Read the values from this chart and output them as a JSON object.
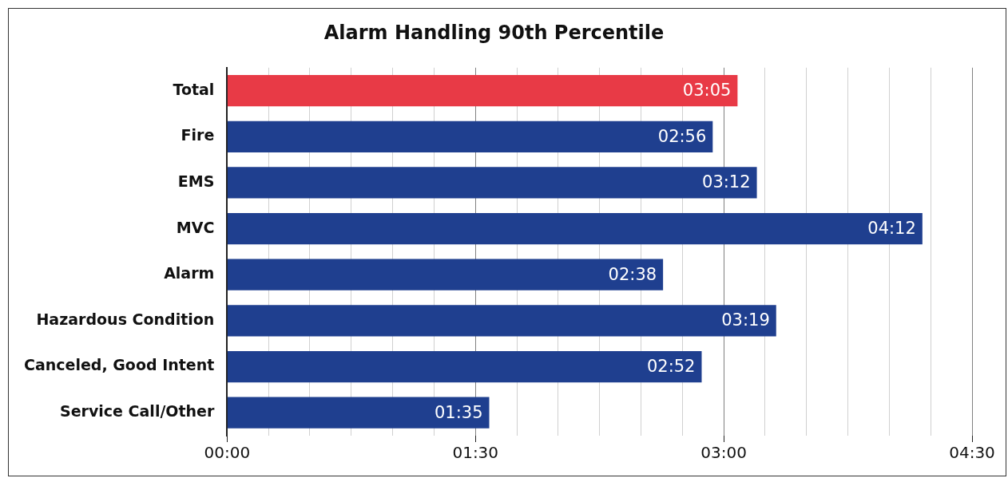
{
  "chart_data": {
    "type": "bar",
    "orientation": "horizontal",
    "title": "Alarm Handling 90th Percentile",
    "categories": [
      "Total",
      "Fire",
      "EMS",
      "MVC",
      "Alarm",
      "Hazardous Condition",
      "Canceled, Good Intent",
      "Service Call/Other"
    ],
    "values": [
      185,
      176,
      192,
      252,
      158,
      199,
      172,
      95
    ],
    "colors": [
      "#e83a46",
      "#1f3f8f",
      "#1f3f8f",
      "#1f3f8f",
      "#1f3f8f",
      "#1f3f8f",
      "#1f3f8f",
      "#1f3f8f"
    ],
    "value_labels": [
      "03:05",
      "02:56",
      "03:12",
      "04:12",
      "02:38",
      "03:19",
      "02:52",
      "01:35"
    ],
    "xlim": [
      0,
      270
    ],
    "xticks": [
      {
        "value": 0,
        "label": "00:00"
      },
      {
        "value": 15,
        "label": null
      },
      {
        "value": 30,
        "label": null
      },
      {
        "value": 45,
        "label": null
      },
      {
        "value": 60,
        "label": null
      },
      {
        "value": 75,
        "label": null
      },
      {
        "value": 90,
        "label": "01:30"
      },
      {
        "value": 105,
        "label": null
      },
      {
        "value": 120,
        "label": null
      },
      {
        "value": 135,
        "label": null
      },
      {
        "value": 150,
        "label": null
      },
      {
        "value": 165,
        "label": null
      },
      {
        "value": 180,
        "label": "03:00"
      },
      {
        "value": 195,
        "label": null
      },
      {
        "value": 210,
        "label": null
      },
      {
        "value": 225,
        "label": null
      },
      {
        "value": 240,
        "label": null
      },
      {
        "value": 255,
        "label": null
      },
      {
        "value": 270,
        "label": "04:30"
      }
    ],
    "grid": "x",
    "legend": false
  }
}
